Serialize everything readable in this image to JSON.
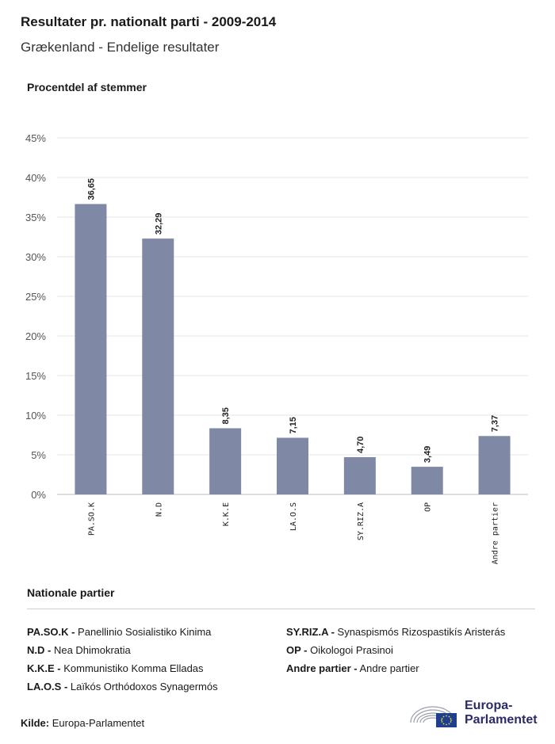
{
  "header": {
    "title": "Resultater pr. nationalt parti - 2009-2014",
    "subtitle": "Grækenland - Endelige resultater"
  },
  "chart_data": {
    "type": "bar",
    "ylabel": "Procentdel af stemmer",
    "categories": [
      "PA.SO.K",
      "N.D",
      "K.K.E",
      "LA.O.S",
      "SY.RIZ.A",
      "OP",
      "Andre partier"
    ],
    "values": [
      36.65,
      32.29,
      8.35,
      7.15,
      4.7,
      3.49,
      7.37
    ],
    "value_labels": [
      "36,65",
      "32,29",
      "8,35",
      "7,15",
      "4,70",
      "3,49",
      "7,37"
    ],
    "ylim": [
      0,
      45
    ],
    "yticks": [
      0,
      5,
      10,
      15,
      20,
      25,
      30,
      35,
      40,
      45
    ],
    "ytick_labels": [
      "0%",
      "5%",
      "10%",
      "15%",
      "20%",
      "25%",
      "30%",
      "35%",
      "40%",
      "45%"
    ],
    "bar_color": "#7f89a6",
    "grid": true
  },
  "legend": {
    "title": "Nationale partier",
    "left": [
      {
        "abbr": "PA.SO.K -",
        "name": "Panellinio Sosialistiko Kinima"
      },
      {
        "abbr": "N.D -",
        "name": "Nea Dhimokratia"
      },
      {
        "abbr": "K.K.E -",
        "name": "Kommunistiko Komma Elladas"
      },
      {
        "abbr": "LA.O.S -",
        "name": "Laïkós Orthódoxos Synagermós"
      }
    ],
    "right": [
      {
        "abbr": "SY.RIZ.A -",
        "name": "Synaspismós Rizospastikís Aristerás"
      },
      {
        "abbr": "OP -",
        "name": "Oikologoi Prasinoi"
      },
      {
        "abbr": "Andre partier -",
        "name": "Andre partier"
      }
    ]
  },
  "footer": {
    "source_label": "Kilde:",
    "source_value": "Europa-Parlamentet",
    "logo_line1": "Europa-",
    "logo_line2": "Parlamentet"
  }
}
